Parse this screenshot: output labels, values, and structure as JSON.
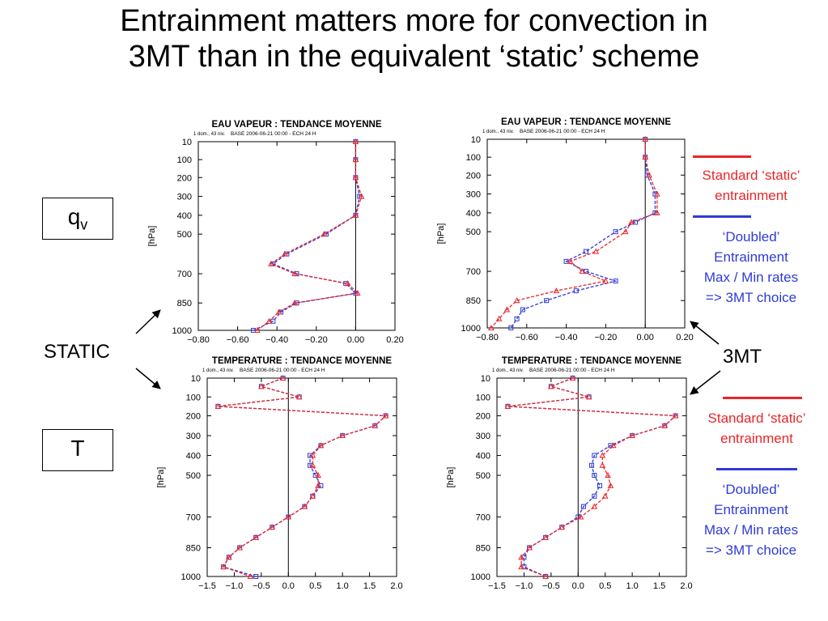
{
  "title": {
    "line1": "Entrainment matters more for convection in",
    "line2": "3MT than in the equivalent ‘static’ scheme"
  },
  "labels": {
    "qv_main": "q",
    "qv_sub": "v",
    "t": "T",
    "static": "STATIC",
    "threemt": "3MT"
  },
  "legend_top": {
    "red_lines": [
      "Standard ‘static’",
      "entrainment"
    ],
    "blue_lines": [
      "‘Doubled’",
      "Entrainment",
      "Max / Min rates",
      "=> 3MT choice"
    ]
  },
  "legend_bottom": {
    "red_lines": [
      "Standard ‘static’",
      "entrainment"
    ],
    "blue_lines": [
      "‘Doubled’",
      "Entrainment",
      "Max / Min rates",
      "=> 3MT choice"
    ]
  },
  "colors": {
    "red": "#e8262a",
    "blue": "#2e3bd6"
  },
  "chart_data": [
    {
      "type": "line",
      "title": "EAU VAPEUR  : TENDANCE MOYENNE",
      "subtitle_left": "1 dom., 43 niv.",
      "subtitle_right": "BASE 2006-06-21 00:00 - ECH 24 H",
      "ylabel": "[hPa]",
      "xlim": [
        -0.8,
        0.2
      ],
      "xticks": [
        "−0.80",
        "−0.60",
        "−0.40",
        "−0.20",
        "0.00",
        "0.20"
      ],
      "xtick_values": [
        -0.8,
        -0.6,
        -0.4,
        -0.2,
        0.0,
        0.2
      ],
      "yticks": [
        "10",
        "100",
        "200",
        "300",
        "400",
        "500",
        "700",
        "850",
        "1000"
      ],
      "series": [
        {
          "color_key": "blue",
          "marker": "square",
          "y": [
            10,
            100,
            200,
            300,
            400,
            500,
            600,
            650,
            700,
            750,
            800,
            850,
            900,
            950,
            1000
          ],
          "x": [
            0.0,
            0.0,
            0.0,
            0.02,
            0.0,
            -0.15,
            -0.35,
            -0.42,
            -0.3,
            -0.05,
            0.0,
            -0.3,
            -0.38,
            -0.42,
            -0.52
          ]
        },
        {
          "color_key": "red",
          "marker": "triangle",
          "y": [
            10,
            100,
            200,
            300,
            400,
            500,
            600,
            650,
            700,
            750,
            800,
            850,
            900,
            950,
            1000
          ],
          "x": [
            0.0,
            0.0,
            0.0,
            0.03,
            0.0,
            -0.16,
            -0.36,
            -0.43,
            -0.31,
            -0.04,
            0.01,
            -0.31,
            -0.39,
            -0.44,
            -0.5
          ]
        }
      ]
    },
    {
      "type": "line",
      "title": "EAU VAPEUR  : TENDANCE MOYENNE",
      "subtitle_left": "1 dom., 43 niv.",
      "subtitle_right": "BASE 2006-06-21 00:00 - ECH 24 H",
      "ylabel": "[hPa]",
      "xlim": [
        -0.8,
        0.2
      ],
      "xticks": [
        "−0.80",
        "−0.60",
        "−0.40",
        "−0.20",
        "0.00",
        "0.20"
      ],
      "xtick_values": [
        -0.8,
        -0.6,
        -0.4,
        -0.2,
        0.0,
        0.2
      ],
      "yticks": [
        "10",
        "100",
        "200",
        "300",
        "400",
        "500",
        "700",
        "850",
        "1000"
      ],
      "series": [
        {
          "color_key": "blue",
          "marker": "square",
          "y": [
            10,
            100,
            200,
            300,
            400,
            450,
            500,
            600,
            650,
            700,
            750,
            800,
            850,
            900,
            950,
            1000
          ],
          "x": [
            0.0,
            0.0,
            0.01,
            0.05,
            0.05,
            -0.05,
            -0.15,
            -0.3,
            -0.4,
            -0.3,
            -0.15,
            -0.35,
            -0.5,
            -0.62,
            -0.65,
            -0.68
          ]
        },
        {
          "color_key": "red",
          "marker": "triangle",
          "y": [
            10,
            100,
            200,
            300,
            400,
            450,
            500,
            600,
            650,
            700,
            750,
            800,
            850,
            900,
            950,
            1000
          ],
          "x": [
            0.0,
            0.0,
            0.02,
            0.06,
            0.06,
            -0.07,
            -0.1,
            -0.25,
            -0.38,
            -0.32,
            -0.2,
            -0.45,
            -0.65,
            -0.7,
            -0.74,
            -0.78
          ]
        }
      ]
    },
    {
      "type": "line",
      "title": "TEMPERATURE : TENDANCE MOYENNE",
      "subtitle_left": "1 dom., 43 niv.",
      "subtitle_right": "BASE 2006-06-21 00:00 - ECH 24 H",
      "ylabel": "[hPa]",
      "xlim": [
        -1.5,
        2.0
      ],
      "xticks": [
        "−1.5",
        "−1.0",
        "−0.5",
        "0.0",
        "0.5",
        "1.0",
        "1.5",
        "2.0"
      ],
      "xtick_values": [
        -1.5,
        -1.0,
        -0.5,
        0.0,
        0.5,
        1.0,
        1.5,
        2.0
      ],
      "yticks": [
        "10",
        "100",
        "200",
        "300",
        "400",
        "500",
        "700",
        "850",
        "1000"
      ],
      "series": [
        {
          "color_key": "blue",
          "marker": "square",
          "y": [
            10,
            50,
            100,
            150,
            200,
            250,
            300,
            350,
            400,
            450,
            500,
            550,
            600,
            650,
            700,
            750,
            800,
            850,
            900,
            950,
            1000
          ],
          "x": [
            -0.1,
            -0.5,
            0.2,
            -1.3,
            1.8,
            1.6,
            1.0,
            0.6,
            0.4,
            0.4,
            0.5,
            0.6,
            0.45,
            0.3,
            0.0,
            -0.3,
            -0.6,
            -0.9,
            -1.1,
            -1.2,
            -0.6
          ]
        },
        {
          "color_key": "red",
          "marker": "triangle",
          "y": [
            10,
            50,
            100,
            150,
            200,
            250,
            300,
            350,
            400,
            450,
            500,
            550,
            600,
            650,
            700,
            750,
            800,
            850,
            900,
            950,
            1000
          ],
          "x": [
            -0.1,
            -0.5,
            0.2,
            -1.3,
            1.8,
            1.6,
            1.0,
            0.6,
            0.45,
            0.45,
            0.55,
            0.55,
            0.45,
            0.3,
            0.0,
            -0.3,
            -0.6,
            -0.9,
            -1.1,
            -1.2,
            -0.7
          ]
        }
      ]
    },
    {
      "type": "line",
      "title": "TEMPERATURE : TENDANCE MOYENNE",
      "subtitle_left": "1 dom., 43 niv.",
      "subtitle_right": "BASE 2006-06-21 00:00 - ECH 24 H",
      "ylabel": "[hPa]",
      "xlim": [
        -1.5,
        2.0
      ],
      "xticks": [
        "−1.5",
        "−1.0",
        "−0.5",
        "0.0",
        "0.5",
        "1.0",
        "1.5",
        "2.0"
      ],
      "xtick_values": [
        -1.5,
        -1.0,
        -0.5,
        0.0,
        0.5,
        1.0,
        1.5,
        2.0
      ],
      "yticks": [
        "10",
        "100",
        "200",
        "300",
        "400",
        "500",
        "700",
        "850",
        "1000"
      ],
      "series": [
        {
          "color_key": "blue",
          "marker": "square",
          "y": [
            10,
            50,
            100,
            150,
            200,
            250,
            300,
            350,
            400,
            450,
            500,
            550,
            600,
            650,
            700,
            750,
            800,
            850,
            900,
            950,
            1000
          ],
          "x": [
            -0.1,
            -0.5,
            0.2,
            -1.3,
            1.8,
            1.6,
            1.0,
            0.6,
            0.3,
            0.25,
            0.3,
            0.4,
            0.3,
            0.1,
            0.0,
            -0.3,
            -0.6,
            -0.9,
            -1.0,
            -1.0,
            -0.6
          ]
        },
        {
          "color_key": "red",
          "marker": "triangle",
          "y": [
            10,
            50,
            100,
            150,
            200,
            250,
            300,
            350,
            400,
            450,
            500,
            550,
            600,
            650,
            700,
            750,
            800,
            850,
            900,
            950,
            1000
          ],
          "x": [
            -0.1,
            -0.5,
            0.2,
            -1.3,
            1.8,
            1.6,
            1.0,
            0.65,
            0.45,
            0.45,
            0.55,
            0.6,
            0.5,
            0.3,
            0.05,
            -0.3,
            -0.6,
            -0.9,
            -1.05,
            -1.05,
            -0.6
          ]
        }
      ]
    }
  ]
}
